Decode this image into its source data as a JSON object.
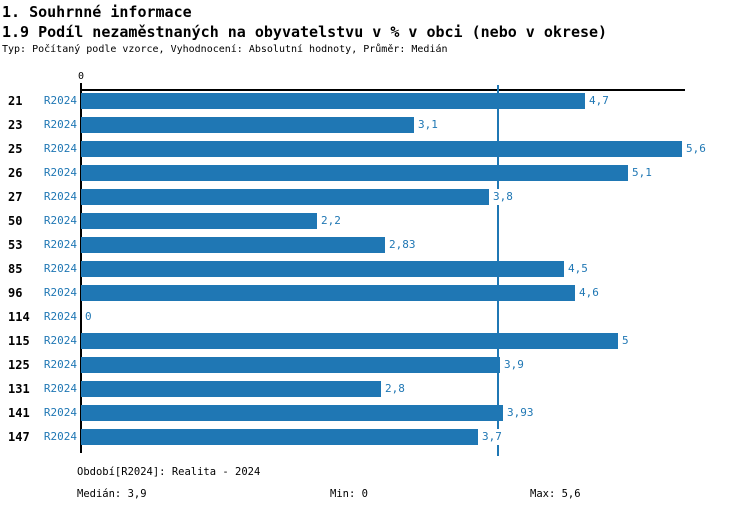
{
  "header": {
    "section_title": "1. Souhrnné informace",
    "chart_title": "1.9 Podíl nezaměstnaných na obyvatelstvu v % v obci (nebo v okrese)",
    "meta_line": "Typ: Počítaný podle vzorce, Vyhodnocení: Absolutní hodnoty, Průměr: Medián"
  },
  "chart_data": {
    "type": "bar",
    "orientation": "horizontal",
    "title": "1.9 Podíl nezaměstnaných na obyvatelstvu v % v obci (nebo v okrese)",
    "series_name": "R2024",
    "categories": [
      "21",
      "23",
      "25",
      "26",
      "27",
      "50",
      "53",
      "85",
      "96",
      "114",
      "115",
      "125",
      "131",
      "141",
      "147"
    ],
    "values": [
      4.7,
      3.1,
      5.6,
      5.1,
      3.8,
      2.2,
      2.83,
      4.5,
      4.6,
      0,
      5,
      3.9,
      2.8,
      3.93,
      3.7
    ],
    "value_labels": [
      "4,7",
      "3,1",
      "5,6",
      "5,1",
      "3,8",
      "2,2",
      "2,83",
      "4,5",
      "4,6",
      "0",
      "5",
      "3,9",
      "2,8",
      "3,93",
      "3,7"
    ],
    "xlabel": "",
    "ylabel": "",
    "xlim": [
      0,
      5.63
    ],
    "x_tick_labels": [
      "0"
    ],
    "grid": false,
    "legend": false,
    "median_line_value": 3.9,
    "bar_color": "#1f77b4",
    "median_line_color": "#1f77b4",
    "label_color": "#1f77b4",
    "axis_color": "#000000"
  },
  "footer": {
    "period_line": "Období[R2024]: Realita - 2024",
    "median_label": "Medián: 3,9",
    "min_label": "Min: 0",
    "max_label": "Max: 5,6"
  }
}
